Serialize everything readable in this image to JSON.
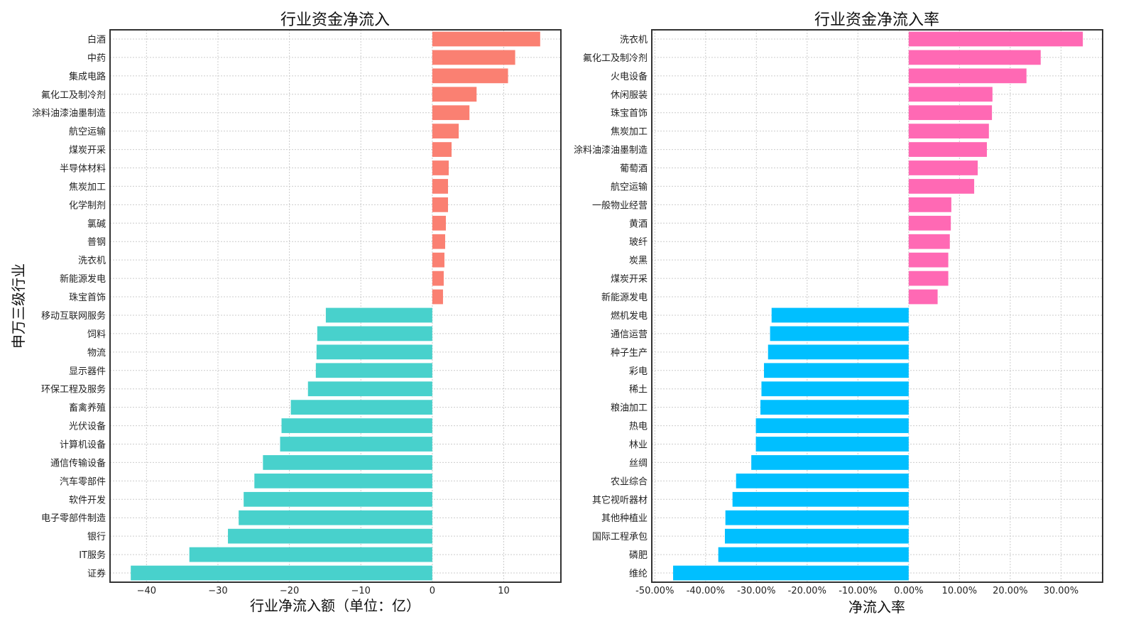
{
  "chart_data": [
    {
      "type": "bar",
      "orientation": "horizontal",
      "title": "行业资金净流入",
      "xlabel": "行业净流入额（单位：亿）",
      "ylabel": "申万三级行业",
      "xlim": [
        -45.1,
        18.0
      ],
      "xticks": [
        -40,
        -30,
        -20,
        -10,
        0,
        10
      ],
      "xtick_labels": [
        "−40",
        "−30",
        "−20",
        "−10",
        "0",
        "10"
      ],
      "grid": true,
      "colors": {
        "positive": "#FA8072",
        "negative": "#48D1CC"
      },
      "categories": [
        "白酒",
        "中药",
        "集成电路",
        "氟化工及制冷剂",
        "涂料油漆油墨制造",
        "航空运输",
        "煤炭开采",
        "半导体材料",
        "焦炭加工",
        "化学制剂",
        "氯碱",
        "普钢",
        "洗衣机",
        "新能源发电",
        "珠宝首饰",
        "移动互联网服务",
        "饲料",
        "物流",
        "显示器件",
        "环保工程及服务",
        "畜禽养殖",
        "光伏设备",
        "计算机设备",
        "通信传输设备",
        "汽车零部件",
        "软件开发",
        "电子零部件制造",
        "银行",
        "IT服务",
        "证券"
      ],
      "values": [
        15.1,
        11.6,
        10.6,
        6.2,
        5.2,
        3.7,
        2.7,
        2.3,
        2.2,
        2.2,
        1.9,
        1.8,
        1.7,
        1.6,
        1.5,
        -14.9,
        -16.1,
        -16.2,
        -16.3,
        -17.4,
        -19.8,
        -21.1,
        -21.3,
        -23.7,
        -24.9,
        -26.4,
        -27.1,
        -28.6,
        -34.0,
        -42.2
      ]
    },
    {
      "type": "bar",
      "orientation": "horizontal",
      "title": "行业资金净流入率",
      "xlabel": "净流入率",
      "ylabel": "",
      "xlim": [
        -50.6,
        38.2
      ],
      "xticks": [
        -50,
        -40,
        -30,
        -20,
        -10,
        0,
        10,
        20,
        30
      ],
      "xtick_labels": [
        "-50.00%",
        "-40.00%",
        "-30.00%",
        "-20.00%",
        "-10.00%",
        "0.00%",
        "10.00%",
        "20.00%",
        "30.00%"
      ],
      "grid": true,
      "colors": {
        "positive": "#FF69B4",
        "negative": "#00BFFF"
      },
      "categories": [
        "洗衣机",
        "氟化工及制冷剂",
        "火电设备",
        "休闲服装",
        "珠宝首饰",
        "焦炭加工",
        "涂料油漆油墨制造",
        "葡萄酒",
        "航空运输",
        "一般物业经营",
        "黄酒",
        "玻纤",
        "炭黑",
        "煤炭开采",
        "新能源发电",
        "燃机发电",
        "通信运营",
        "种子生产",
        "彩电",
        "稀土",
        "粮油加工",
        "热电",
        "林业",
        "丝绸",
        "农业综合",
        "其它视听器材",
        "其他种植业",
        "国际工程承包",
        "磷肥",
        "维纶"
      ],
      "values": [
        34.3,
        26.0,
        23.2,
        16.5,
        16.4,
        15.8,
        15.4,
        13.6,
        12.9,
        8.4,
        8.3,
        8.1,
        7.8,
        7.8,
        5.7,
        -27.0,
        -27.3,
        -27.7,
        -28.5,
        -29.0,
        -29.2,
        -30.1,
        -30.1,
        -31.0,
        -34.0,
        -34.7,
        -36.1,
        -36.2,
        -37.5,
        -46.4
      ]
    }
  ]
}
